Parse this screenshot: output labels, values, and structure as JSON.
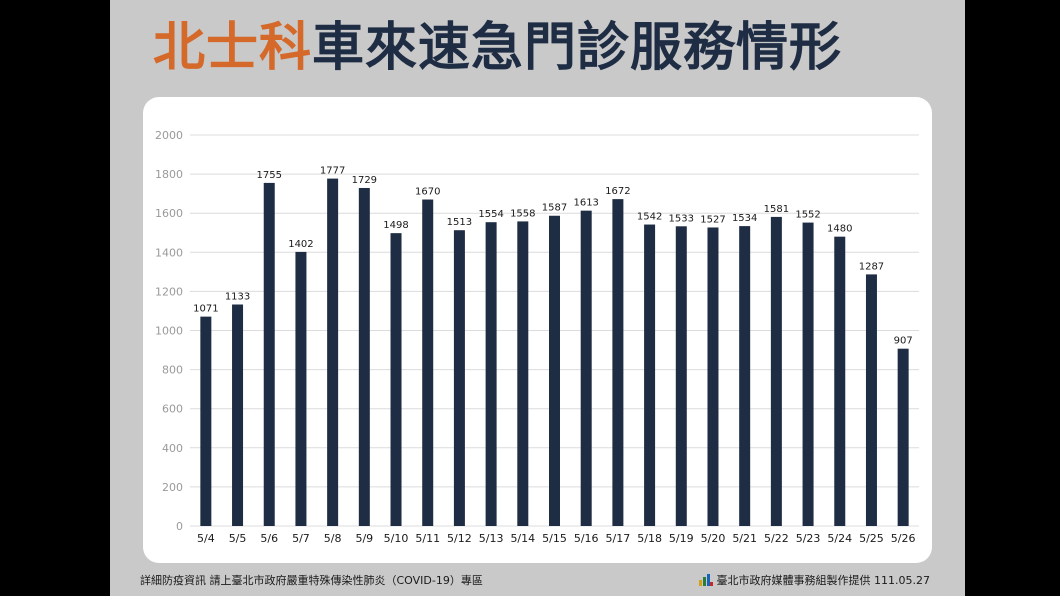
{
  "title": {
    "highlight": "北士科",
    "rest": "車來速急門診服務情形"
  },
  "colors": {
    "highlight": "#d4692a",
    "navy": "#1f2d44",
    "bar": "#1f2d44",
    "grid": "#dcdcdc",
    "axis_text": "#9a9a9a"
  },
  "footer": {
    "left": "詳細防疫資訊 請上臺北市政府嚴重特殊傳染性肺炎（COVID-19）專區",
    "right": "臺北市政府媒體事務組製作提供 111.05.27",
    "logo_icon": "taipei-logo-icon"
  },
  "chart_data": {
    "type": "bar",
    "title": "",
    "xlabel": "",
    "ylabel": "",
    "ylim": [
      0,
      2000
    ],
    "yticks": [
      0,
      200,
      400,
      600,
      800,
      1000,
      1200,
      1400,
      1600,
      1800,
      2000
    ],
    "grid": true,
    "categories": [
      "5/4",
      "5/5",
      "5/6",
      "5/7",
      "5/8",
      "5/9",
      "5/10",
      "5/11",
      "5/12",
      "5/13",
      "5/14",
      "5/15",
      "5/16",
      "5/17",
      "5/18",
      "5/19",
      "5/20",
      "5/21",
      "5/22",
      "5/23",
      "5/24",
      "5/25",
      "5/26"
    ],
    "values": [
      1071,
      1133,
      1755,
      1402,
      1777,
      1729,
      1498,
      1670,
      1513,
      1554,
      1558,
      1587,
      1613,
      1672,
      1542,
      1533,
      1527,
      1534,
      1581,
      1552,
      1480,
      1287,
      907
    ]
  }
}
